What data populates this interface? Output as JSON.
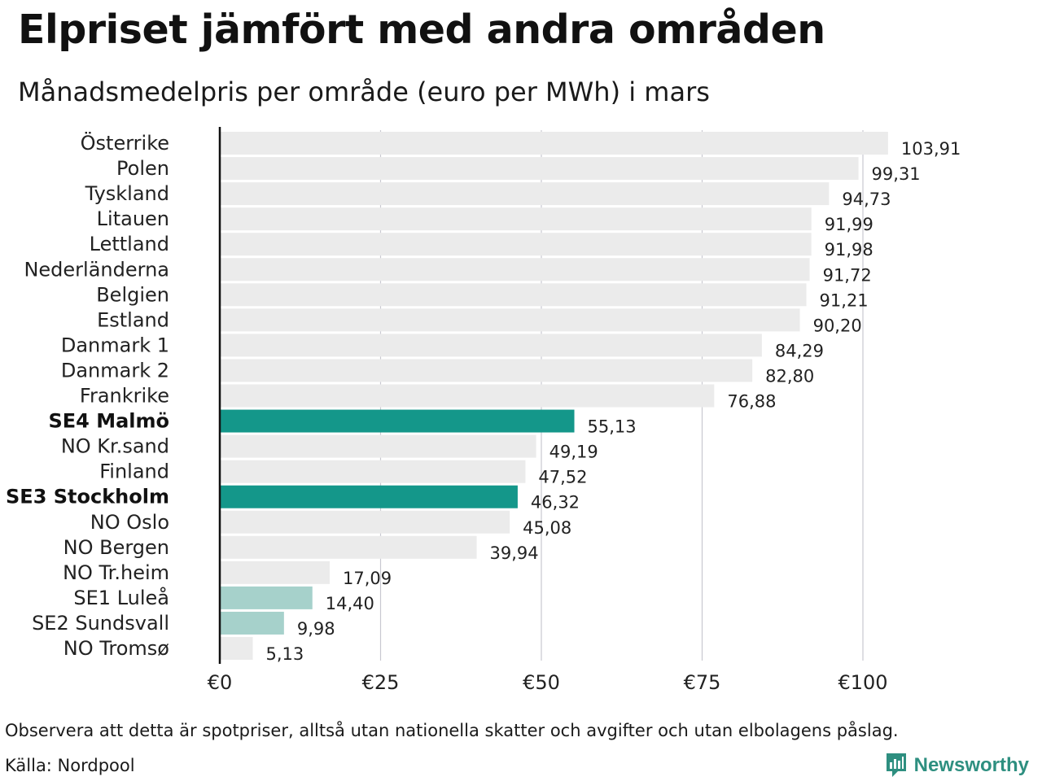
{
  "title": "Elpriset jämfört med andra områden",
  "subtitle": "Månadsmedelpris per område (euro per MWh) i mars",
  "note": "Observera att detta är spotpriser, alltså utan nationella skatter och avgifter och utan elbolagens påslag.",
  "source": "Källa: Nordpool",
  "brand": {
    "name": "Newsworthy",
    "icon": "newsworthy-logo-icon"
  },
  "colors": {
    "default_bar": "#ebebeb",
    "highlight_bar": "#14978a",
    "light_highlight_bar": "#a6d1cb",
    "grid": "#c8c8d0",
    "axis": "#111111"
  },
  "chart_data": {
    "type": "bar",
    "orientation": "horizontal",
    "title": "Elpriset jämfört med andra områden",
    "subtitle": "Månadsmedelpris per område (euro per MWh) i mars",
    "categories": [
      "Österrike",
      "Polen",
      "Tyskland",
      "Litauen",
      "Lettland",
      "Nederländerna",
      "Belgien",
      "Estland",
      "Danmark  1",
      "Danmark  2",
      "Frankrike",
      "SE4 Malmö",
      "NO Kr.sand",
      "Finland",
      "SE3 Stockholm",
      "NO Oslo",
      "NO Bergen",
      "NO Tr.heim",
      "SE1  Luleå",
      "SE2  Sundsvall",
      "NO Tromsø"
    ],
    "values": [
      103.91,
      99.31,
      94.73,
      91.99,
      91.98,
      91.72,
      91.21,
      90.2,
      84.29,
      82.8,
      76.88,
      55.13,
      49.19,
      47.52,
      46.32,
      45.08,
      39.94,
      17.09,
      14.4,
      9.98,
      5.13
    ],
    "value_labels": [
      "103,91",
      "99,31",
      "94,73",
      "91,99",
      "91,98",
      "91,72",
      "91,21",
      "90,20",
      "84,29",
      "82,80",
      "76,88",
      "55,13",
      "49,19",
      "47,52",
      "46,32",
      "45,08",
      "39,94",
      "17,09",
      "14,40",
      "9,98",
      "5,13"
    ],
    "highlight": [
      "default",
      "default",
      "default",
      "default",
      "default",
      "default",
      "default",
      "default",
      "default",
      "default",
      "default",
      "strong",
      "default",
      "default",
      "strong",
      "default",
      "default",
      "default",
      "light",
      "light",
      "default"
    ],
    "bold_labels": [
      "SE4 Malmö",
      "SE3 Stockholm"
    ],
    "xlim": [
      0,
      105
    ],
    "xticks": [
      0,
      25,
      50,
      75,
      100
    ],
    "xtick_labels": [
      "€0",
      "€25",
      "€50",
      "€75",
      "€100"
    ],
    "grid": "vertical",
    "legend": "none"
  }
}
